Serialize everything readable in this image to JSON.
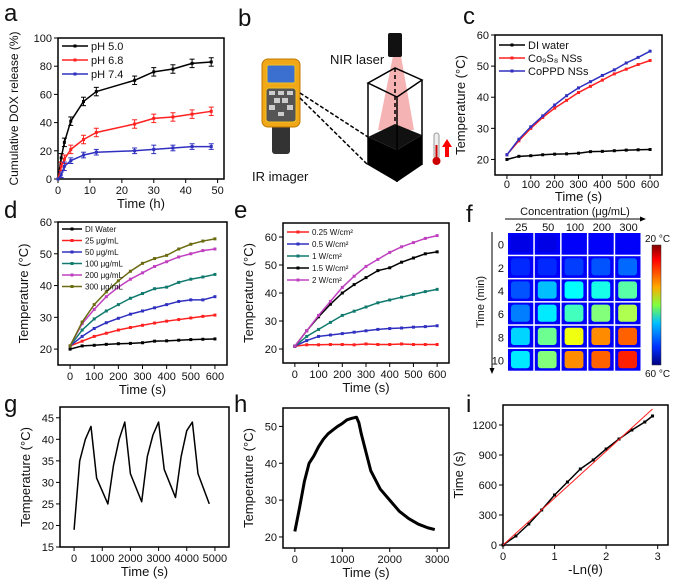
{
  "panel_letters": {
    "a": "a",
    "b": "b",
    "c": "c",
    "d": "d",
    "e": "e",
    "f": "f",
    "g": "g",
    "h": "h",
    "i": "i"
  },
  "schematic": {
    "laser_label": "NIR laser",
    "imager_label": "IR imager"
  },
  "heatmap": {
    "x_title": "Concentration (μg/mL)",
    "y_title": "Time (min)",
    "columns": [
      "25",
      "50",
      "100",
      "200",
      "300"
    ],
    "rows": [
      "0",
      "2",
      "4",
      "6",
      "8",
      "10"
    ],
    "temperatures_c": [
      [
        20,
        20,
        21,
        21,
        21
      ],
      [
        23,
        23,
        24,
        25,
        26
      ],
      [
        25,
        30,
        33,
        34,
        37
      ],
      [
        27,
        32,
        36,
        39,
        41
      ],
      [
        31,
        38,
        44,
        50,
        52
      ],
      [
        32,
        39,
        50,
        52,
        55
      ]
    ],
    "colorbar_top": "20 °C",
    "colorbar_bottom": "60 °C"
  },
  "chart_data": [
    {
      "id": "a",
      "type": "line",
      "xlabel": "Time (h)",
      "ylabel": "Cumulative DOX release (%)",
      "xlim": [
        0,
        52
      ],
      "ylim": [
        0,
        100
      ],
      "xticks": [
        0,
        10,
        20,
        30,
        40,
        50
      ],
      "yticks": [
        0,
        20,
        40,
        60,
        80,
        100
      ],
      "legend": "top-left",
      "grid": false,
      "x": [
        0,
        1,
        2,
        4,
        8,
        12,
        24,
        30,
        36,
        42,
        48
      ],
      "series": [
        {
          "name": "pH 5.0",
          "color": "#000000",
          "y": [
            0,
            15,
            26,
            41,
            55,
            62,
            70,
            76,
            78,
            82,
            83
          ],
          "err": [
            0,
            3,
            3,
            3,
            3,
            3,
            3,
            3,
            3,
            3,
            3
          ]
        },
        {
          "name": "pH 6.8",
          "color": "#ff2020",
          "y": [
            0,
            9,
            14,
            21,
            28,
            33,
            39,
            43,
            44,
            46,
            48
          ],
          "err": [
            0,
            3,
            3,
            3,
            3,
            3,
            3,
            3,
            3,
            3,
            3
          ]
        },
        {
          "name": "pH 7.4",
          "color": "#3030c0",
          "y": [
            0,
            3,
            9,
            13,
            17,
            19,
            20,
            21,
            22,
            23,
            23
          ],
          "err": [
            0,
            2,
            3,
            2,
            2,
            2,
            2,
            3,
            2,
            2,
            2
          ]
        }
      ]
    },
    {
      "id": "c",
      "type": "line",
      "xlabel": "Time (s)",
      "ylabel": "Temperature (°C)",
      "xlim": [
        -50,
        650
      ],
      "ylim": [
        15,
        60
      ],
      "xticks": [
        0,
        100,
        200,
        300,
        400,
        500,
        600
      ],
      "yticks": [
        20,
        30,
        40,
        50,
        60
      ],
      "legend": "top-left",
      "grid": false,
      "x": [
        0,
        50,
        100,
        150,
        200,
        250,
        300,
        350,
        400,
        450,
        500,
        550,
        600
      ],
      "series": [
        {
          "name": "DI water",
          "color": "#000000",
          "y": [
            20,
            21,
            21.2,
            21.5,
            21.7,
            21.8,
            22,
            22.5,
            22.6,
            22.8,
            23,
            23.1,
            23.2
          ]
        },
        {
          "name": "Co₉S₈ NSs",
          "color": "#ff2020",
          "y": [
            21.5,
            26,
            30,
            33.5,
            36.5,
            39,
            41.5,
            43.5,
            45.5,
            47.5,
            49,
            50.5,
            51.8
          ]
        },
        {
          "name": "CoPPD NSs",
          "color": "#3030c0",
          "y": [
            21.5,
            26.5,
            30.5,
            34,
            37.5,
            40.5,
            43,
            45,
            47,
            48.8,
            51,
            52.8,
            54.8
          ]
        }
      ]
    },
    {
      "id": "d",
      "type": "line",
      "xlabel": "Time (s)",
      "ylabel": "Temperature (°C)",
      "xlim": [
        -50,
        650
      ],
      "ylim": [
        15,
        60
      ],
      "xticks": [
        0,
        100,
        200,
        300,
        400,
        500,
        600
      ],
      "yticks": [
        20,
        30,
        40,
        50,
        60
      ],
      "legend": "top-left",
      "grid": false,
      "x": [
        0,
        50,
        100,
        150,
        200,
        250,
        300,
        350,
        400,
        450,
        500,
        550,
        600
      ],
      "series": [
        {
          "name": "DI Water",
          "color": "#000000",
          "y": [
            20,
            21,
            21.2,
            21.5,
            21.7,
            21.8,
            22,
            22.5,
            22.6,
            22.8,
            23,
            23.1,
            23.2
          ]
        },
        {
          "name": "25 μg/mL",
          "color": "#ff2020",
          "y": [
            21,
            22.5,
            24,
            25,
            26,
            26.8,
            27.5,
            28.2,
            28.8,
            29.3,
            29.8,
            30.3,
            30.7
          ]
        },
        {
          "name": "50 μg/mL",
          "color": "#3030c0",
          "y": [
            21,
            24,
            26.5,
            28.3,
            29.7,
            31,
            32,
            33,
            34,
            35,
            35.5,
            35.5,
            36.5
          ]
        },
        {
          "name": "100 μg/mL",
          "color": "#107a6e",
          "y": [
            21,
            26,
            29.5,
            32,
            34,
            36,
            37.5,
            39,
            39.5,
            41,
            42,
            42.7,
            43.5
          ]
        },
        {
          "name": "200 μg/mL",
          "color": "#c040c0",
          "y": [
            21,
            28,
            32.5,
            36.5,
            39.5,
            42,
            44,
            46,
            47.5,
            49,
            50,
            51,
            51.5
          ]
        },
        {
          "name": "300 μg/mL",
          "color": "#6b6b10",
          "y": [
            21,
            28.5,
            34,
            38,
            41.5,
            44.5,
            47,
            48.5,
            49.5,
            51.5,
            53,
            54,
            54.7
          ]
        }
      ]
    },
    {
      "id": "e",
      "type": "line",
      "xlabel": "Time (s)",
      "ylabel": "Temperature (°C)",
      "xlim": [
        -50,
        650
      ],
      "ylim": [
        15,
        65
      ],
      "xticks": [
        0,
        100,
        200,
        300,
        400,
        500,
        600
      ],
      "yticks": [
        20,
        30,
        40,
        50,
        60
      ],
      "legend": "top-left",
      "grid": false,
      "x": [
        0,
        50,
        100,
        150,
        200,
        250,
        300,
        350,
        400,
        450,
        500,
        550,
        600
      ],
      "series": [
        {
          "name": "0.25 W/cm²",
          "color": "#ff2020",
          "y": [
            21,
            21.5,
            21.5,
            21.6,
            21.6,
            21.5,
            21.8,
            21.6,
            21.6,
            21.8,
            21.6,
            21.6,
            21.6
          ]
        },
        {
          "name": "0.5 W/cm²",
          "color": "#3030c0",
          "y": [
            21,
            23,
            24.5,
            25,
            25.5,
            26,
            26.5,
            27,
            27.3,
            27.5,
            27.8,
            28,
            28.3
          ]
        },
        {
          "name": "1 W/cm²",
          "color": "#107a6e",
          "y": [
            21,
            24.5,
            27,
            29.5,
            32,
            33.5,
            35,
            36.5,
            37.5,
            38.5,
            39.5,
            40.5,
            41.3
          ]
        },
        {
          "name": "1.5 W/cm²",
          "color": "#000000",
          "y": [
            21,
            26.5,
            31.5,
            36,
            40,
            43,
            45.5,
            48,
            49,
            51,
            52.5,
            54,
            54.7
          ]
        },
        {
          "name": "2 W/cm²",
          "color": "#c040c0",
          "y": [
            21,
            26.5,
            32,
            37,
            42,
            46,
            49.5,
            52,
            54.5,
            56.5,
            58,
            59.5,
            60.5
          ]
        }
      ]
    },
    {
      "id": "g",
      "type": "line",
      "xlabel": "Time (s)",
      "ylabel": "Temperature (°C)",
      "xlim": [
        -500,
        5500
      ],
      "ylim": [
        15,
        47.5
      ],
      "xticks": [
        0,
        1000,
        2000,
        3000,
        4000,
        5000
      ],
      "yticks": [
        15,
        20,
        25,
        30,
        35,
        40,
        45
      ],
      "grid": false,
      "x": [
        0,
        200,
        400,
        600,
        800,
        1200,
        1400,
        1600,
        1800,
        2000,
        2400,
        2600,
        2800,
        3000,
        3200,
        3600,
        3800,
        4000,
        4200,
        4400,
        4800
      ],
      "series": [
        {
          "color": "#000000",
          "y": [
            19,
            35,
            40,
            43,
            31,
            25,
            34,
            40,
            44,
            32,
            25.5,
            36,
            41,
            44,
            33,
            26.5,
            36,
            42,
            44,
            32,
            25
          ]
        }
      ]
    },
    {
      "id": "h",
      "type": "scatter",
      "xlabel": "Time (s)",
      "ylabel": "Temperature (°C)",
      "xlim": [
        -250,
        3250
      ],
      "ylim": [
        17,
        55
      ],
      "xticks": [
        0,
        1000,
        2000,
        3000
      ],
      "yticks": [
        20,
        30,
        40,
        50
      ],
      "grid": false,
      "x": [
        0,
        100,
        200,
        300,
        400,
        500,
        600,
        700,
        800,
        900,
        1000,
        1100,
        1200,
        1300,
        1350,
        1400,
        1500,
        1600,
        1800,
        2000,
        2200,
        2400,
        2600,
        2800,
        2950
      ],
      "series": [
        {
          "color": "#000000",
          "y": [
            21.5,
            28,
            35,
            40,
            42,
            44.5,
            46.5,
            48,
            49,
            50,
            50.8,
            51.8,
            52.2,
            52.5,
            51,
            48,
            43,
            38,
            33,
            30,
            27,
            25,
            23.5,
            22.5,
            22
          ]
        }
      ]
    },
    {
      "id": "i",
      "type": "scatter",
      "xlabel": "-Ln(θ)",
      "ylabel": "Time (s)",
      "xlim": [
        0,
        3.2
      ],
      "ylim": [
        0,
        1400
      ],
      "xticks": [
        0,
        1,
        2,
        3
      ],
      "yticks": [
        0,
        300,
        600,
        900,
        1200
      ],
      "grid": false,
      "series": [
        {
          "color": "#000000",
          "x": [
            0,
            0.25,
            0.5,
            0.75,
            1,
            1.25,
            1.5,
            1.75,
            2,
            2.25,
            2.5,
            2.75,
            2.9
          ],
          "y": [
            0,
            90,
            210,
            350,
            500,
            630,
            760,
            850,
            960,
            1060,
            1150,
            1230,
            1290
          ]
        },
        {
          "color": "#ff2020",
          "fit": true,
          "x": [
            0,
            2.9
          ],
          "y": [
            0,
            1360
          ]
        }
      ]
    }
  ]
}
